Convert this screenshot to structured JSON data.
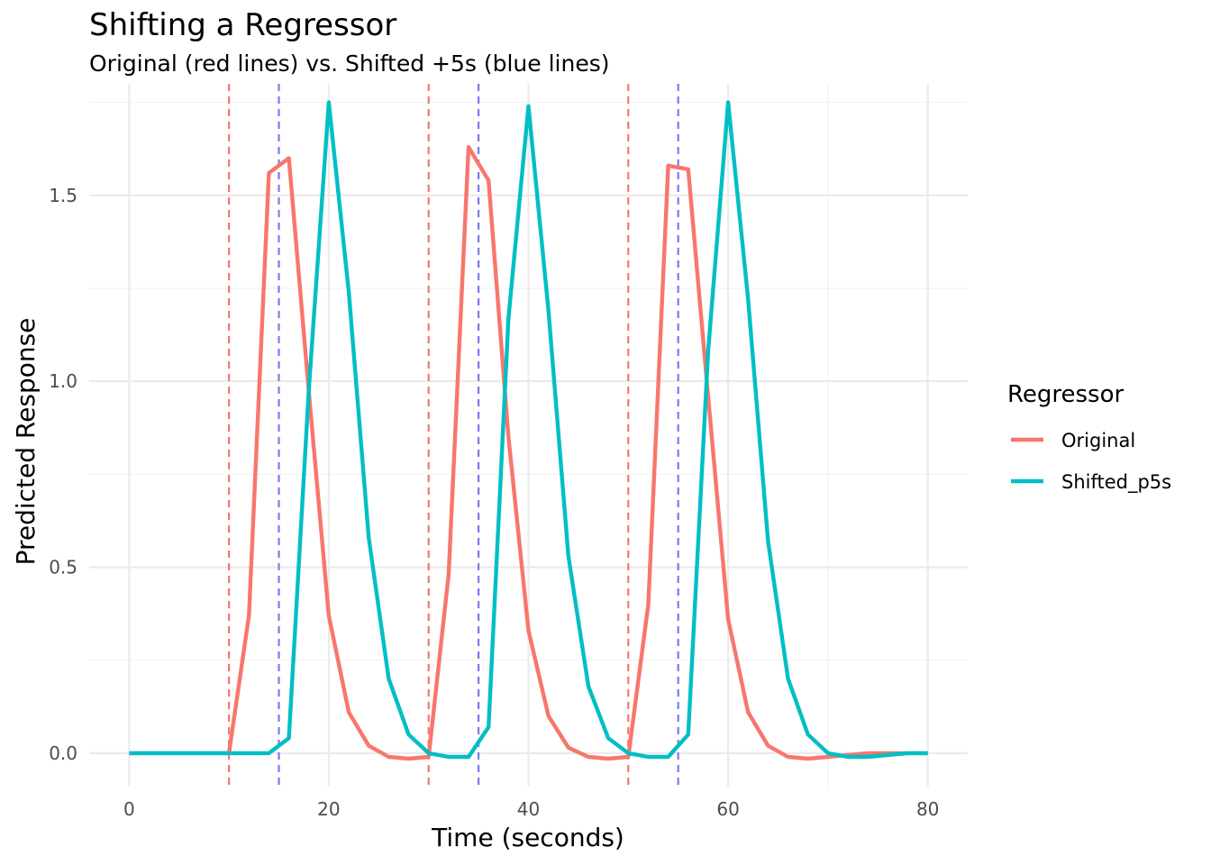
{
  "chart_data": {
    "type": "line",
    "title": "Shifting a Regressor",
    "subtitle": "Original (red lines) vs. Shifted +5s (blue lines)",
    "xlabel": "Time (seconds)",
    "ylabel": "Predicted Response",
    "xlim": [
      -4,
      84
    ],
    "ylim": [
      -0.09,
      1.8
    ],
    "x_ticks": [
      0,
      20,
      40,
      60,
      80
    ],
    "x_tick_labels": [
      "0",
      "20",
      "40",
      "60",
      "80"
    ],
    "y_ticks": [
      0,
      0.5,
      1,
      1.5
    ],
    "y_tick_labels": [
      "0.0",
      "0.5",
      "1.0",
      "1.5"
    ],
    "grid": true,
    "legend_position": "right",
    "legend_title": "Regressor",
    "series": [
      {
        "name": "Original",
        "color": "#F8766D",
        "x": [
          0,
          2,
          4,
          6,
          8,
          10,
          12,
          14,
          16,
          18,
          20,
          22,
          24,
          26,
          28,
          30,
          32,
          34,
          36,
          38,
          40,
          42,
          44,
          46,
          48,
          50,
          52,
          54,
          56,
          58,
          60,
          62,
          64,
          66,
          68,
          70,
          72,
          74,
          76,
          78,
          80
        ],
        "y": [
          0,
          0,
          0,
          0,
          0,
          0,
          0.37,
          1.56,
          1.6,
          0.97,
          0.37,
          0.11,
          0.02,
          -0.01,
          -0.015,
          -0.01,
          0.48,
          1.63,
          1.54,
          0.85,
          0.33,
          0.1,
          0.015,
          -0.01,
          -0.015,
          -0.01,
          0.4,
          1.58,
          1.57,
          0.96,
          0.36,
          0.11,
          0.02,
          -0.01,
          -0.015,
          -0.01,
          -0.005,
          0,
          0,
          0,
          0
        ]
      },
      {
        "name": "Shifted_p5s",
        "color": "#00BFC4",
        "x": [
          0,
          2,
          4,
          6,
          8,
          10,
          12,
          14,
          16,
          18,
          20,
          22,
          24,
          26,
          28,
          30,
          32,
          34,
          36,
          38,
          40,
          42,
          44,
          46,
          48,
          50,
          52,
          54,
          56,
          58,
          60,
          62,
          64,
          66,
          68,
          70,
          72,
          74,
          76,
          78,
          80
        ],
        "y": [
          0,
          0,
          0,
          0,
          0,
          0,
          0,
          0,
          0.04,
          0.98,
          1.75,
          1.24,
          0.58,
          0.2,
          0.05,
          0,
          -0.01,
          -0.01,
          0.07,
          1.17,
          1.74,
          1.19,
          0.53,
          0.18,
          0.04,
          0,
          -0.01,
          -0.01,
          0.05,
          1.08,
          1.75,
          1.22,
          0.57,
          0.2,
          0.05,
          0,
          -0.01,
          -0.01,
          -0.005,
          0,
          0
        ]
      }
    ],
    "vlines": [
      {
        "x": 10,
        "color": "#F8766D",
        "style": "dashed"
      },
      {
        "x": 30,
        "color": "#F8766D",
        "style": "dashed"
      },
      {
        "x": 50,
        "color": "#F8766D",
        "style": "dashed"
      },
      {
        "x": 15,
        "color": "#7B7BF0",
        "style": "dashed"
      },
      {
        "x": 35,
        "color": "#7B7BF0",
        "style": "dashed"
      },
      {
        "x": 55,
        "color": "#7B7BF0",
        "style": "dashed"
      }
    ]
  }
}
